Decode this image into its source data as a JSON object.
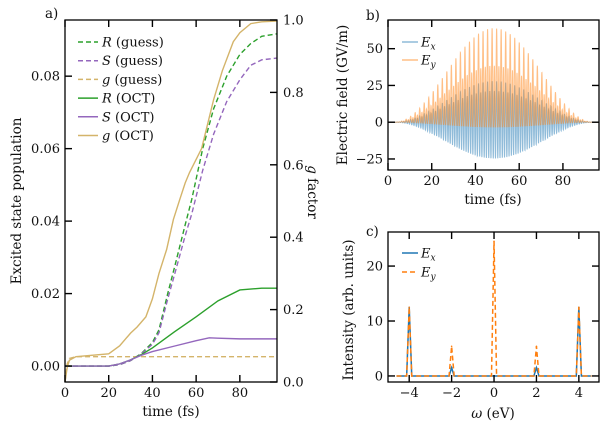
{
  "colors": {
    "R": "#2ca02c",
    "S": "#9467bd",
    "g": "#d4b46a",
    "Ex": "#1f77b4",
    "Ey": "#ff7f0e"
  },
  "chart_data": [
    {
      "panel_label": "a)",
      "type": "line",
      "xlabel": "time (fs)",
      "ylabel": "Excited state population",
      "y2label_italic": "g",
      "y2label_rest": " factor",
      "xlim": [
        0,
        97
      ],
      "ylim": [
        -0.0044,
        0.0955
      ],
      "y2lim": [
        0,
        1.0
      ],
      "xticks": [
        "0",
        "20",
        "40",
        "60",
        "80"
      ],
      "yticks": [
        "0.00",
        "0.02",
        "0.04",
        "0.06",
        "0.08"
      ],
      "y2ticks": [
        "0.0",
        "0.2",
        "0.4",
        "0.6",
        "0.8",
        "1.0"
      ],
      "legend": "upper-left",
      "series": [
        {
          "name": "R (guess)",
          "sym": "R",
          "rest": " (guess)",
          "color_key": "R",
          "dashed": true,
          "axis": "left",
          "x": [
            0,
            20,
            25,
            30,
            35,
            40,
            43,
            47,
            50,
            55,
            58,
            63,
            68,
            74,
            80,
            85,
            90,
            97
          ],
          "y": [
            0,
            0,
            0.0004,
            0.0015,
            0.0035,
            0.0065,
            0.01,
            0.02,
            0.027,
            0.039,
            0.046,
            0.06,
            0.071,
            0.08,
            0.086,
            0.089,
            0.091,
            0.0917
          ]
        },
        {
          "name": "S (guess)",
          "sym": "S",
          "rest": " (guess)",
          "color_key": "S",
          "dashed": true,
          "axis": "left",
          "x": [
            0,
            20,
            25,
            30,
            35,
            40,
            43,
            47,
            50,
            55,
            58,
            63,
            68,
            74,
            80,
            85,
            90,
            97
          ],
          "y": [
            0,
            0,
            0.0004,
            0.0015,
            0.0034,
            0.006,
            0.0092,
            0.0185,
            0.025,
            0.036,
            0.042,
            0.054,
            0.064,
            0.073,
            0.079,
            0.083,
            0.0845,
            0.085
          ]
        },
        {
          "name": "g (guess)",
          "sym": "g",
          "rest": " (guess)",
          "color_key": "g",
          "dashed": true,
          "axis": "right",
          "x": [
            0,
            1,
            2,
            5,
            97
          ],
          "y": [
            0,
            0.05,
            0.065,
            0.07,
            0.07
          ]
        },
        {
          "name": "R (OCT)",
          "sym": "R",
          "rest": " (OCT)",
          "color_key": "R",
          "dashed": false,
          "axis": "left",
          "x": [
            0,
            20,
            25,
            30,
            35,
            40,
            50,
            60,
            70,
            80,
            90,
            97
          ],
          "y": [
            0,
            0,
            0.0006,
            0.0017,
            0.0032,
            0.005,
            0.0094,
            0.0136,
            0.018,
            0.021,
            0.0215,
            0.0215
          ]
        },
        {
          "name": "S (OCT)",
          "sym": "S",
          "rest": " (OCT)",
          "color_key": "S",
          "dashed": false,
          "axis": "left",
          "x": [
            0,
            20,
            25,
            30,
            35,
            40,
            50,
            60,
            66,
            70,
            80,
            97
          ],
          "y": [
            0,
            0,
            0.0006,
            0.0017,
            0.003,
            0.004,
            0.0055,
            0.007,
            0.0078,
            0.0077,
            0.0075,
            0.0075
          ]
        },
        {
          "name": "g (OCT)",
          "sym": "g",
          "rest": " (OCT)",
          "color_key": "g",
          "dashed": false,
          "axis": "right",
          "x": [
            0,
            1,
            2,
            5,
            20,
            25,
            30,
            33,
            37,
            40,
            43,
            46.5,
            49.6,
            52.5,
            55,
            57,
            62.5,
            68,
            72,
            77,
            80,
            85,
            90,
            97
          ],
          "y": [
            0,
            0.04,
            0.06,
            0.07,
            0.078,
            0.1,
            0.135,
            0.152,
            0.18,
            0.23,
            0.3,
            0.366,
            0.449,
            0.504,
            0.55,
            0.579,
            0.645,
            0.78,
            0.86,
            0.94,
            0.965,
            0.99,
            0.995,
            0.997
          ]
        }
      ]
    },
    {
      "panel_label": "b)",
      "type": "line",
      "xlabel": "time (fs)",
      "ylabel": "Electric field (GV/m)",
      "xlim": [
        0,
        96.5
      ],
      "ylim": [
        -32.5,
        69.5
      ],
      "xticks": [
        "0",
        "20",
        "40",
        "60",
        "80"
      ],
      "yticks": [
        "−25",
        "0",
        "25",
        "50"
      ],
      "ytick_values": [
        -25,
        0,
        25,
        50
      ],
      "legend": "upper-left",
      "pulse_fs": [
        3,
        94
      ],
      "series": [
        {
          "name": "Ex",
          "main": "E",
          "sub": "x",
          "color_key": "Ex",
          "range": [
            -28,
            28
          ]
        },
        {
          "name": "Ey",
          "main": "E",
          "sub": "y",
          "color_key": "Ey",
          "range": [
            -3,
            64
          ]
        }
      ]
    },
    {
      "panel_label": "c)",
      "type": "line",
      "xlabel_sym": "ω",
      "xlabel_rest": " (eV)",
      "ylabel": "Intensity (arb. units)",
      "xlim": [
        -5,
        4.95
      ],
      "ylim": [
        -1.1,
        26.2
      ],
      "xticks": [
        "−4",
        "−2",
        "0",
        "2",
        "4"
      ],
      "xtick_values": [
        -4,
        -2,
        0,
        2,
        4
      ],
      "yticks": [
        "0",
        "10",
        "20"
      ],
      "ytick_values": [
        0,
        10,
        20
      ],
      "legend": "upper-left",
      "series": [
        {
          "name": "Ex",
          "main": "E",
          "sub": "x",
          "color_key": "Ex",
          "dashed": false,
          "peaks_x": [
            -4,
            -2,
            0,
            2,
            4
          ],
          "peaks_y": [
            12.5,
            1.5,
            0,
            1.5,
            12.5
          ]
        },
        {
          "name": "Ey",
          "main": "E",
          "sub": "y",
          "color_key": "Ey",
          "dashed": true,
          "peaks_x": [
            -4,
            -2,
            0,
            2,
            4
          ],
          "peaks_y": [
            12.5,
            5.4,
            24.5,
            5.4,
            12.5
          ]
        }
      ]
    }
  ]
}
